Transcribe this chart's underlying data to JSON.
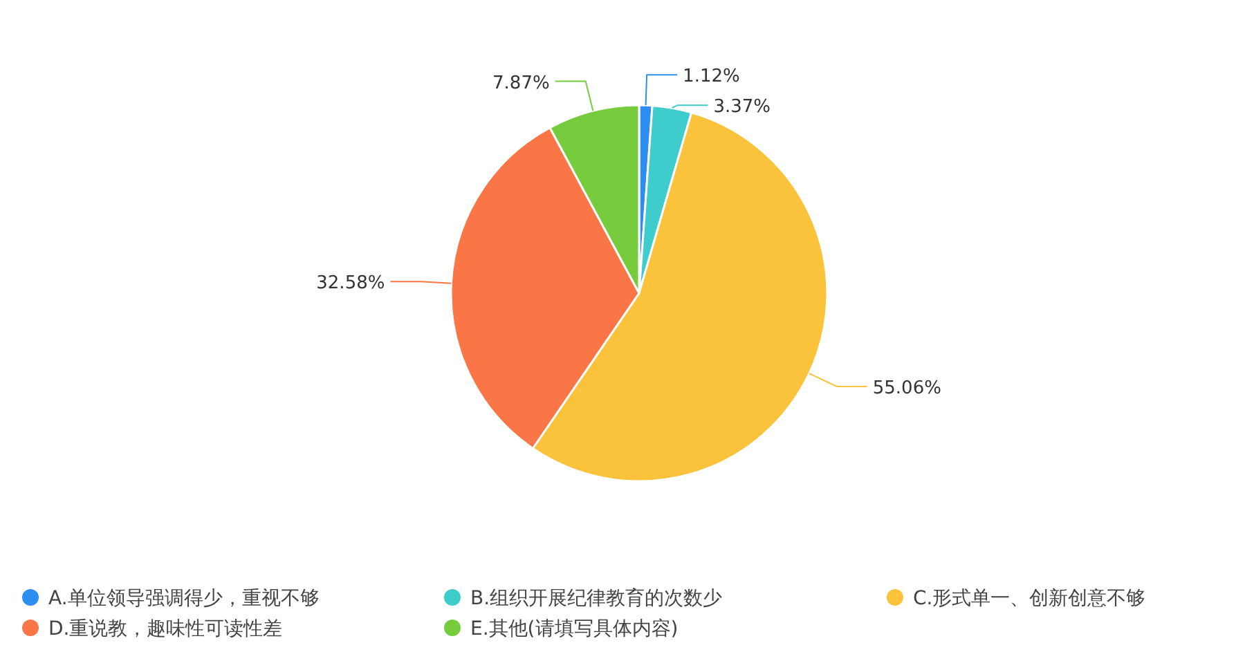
{
  "chart_data": {
    "type": "pie",
    "categories": [
      "A.单位领导强调得少，重视不够",
      "B.组织开展纪律教育的次数少",
      "C.形式单一、创新创意不够",
      "D.重说教，趣味性可读性差",
      "E.其他(请填写具体内容)"
    ],
    "values": [
      1.12,
      3.37,
      55.06,
      32.58,
      7.87
    ],
    "colors": [
      "#2b8ef0",
      "#3fcccc",
      "#fbc23c",
      "#fa7646",
      "#76cc3c"
    ],
    "value_labels": [
      "1.12%",
      "3.37%",
      "55.06%",
      "32.58%",
      "7.87%"
    ],
    "legend": "bottom"
  }
}
